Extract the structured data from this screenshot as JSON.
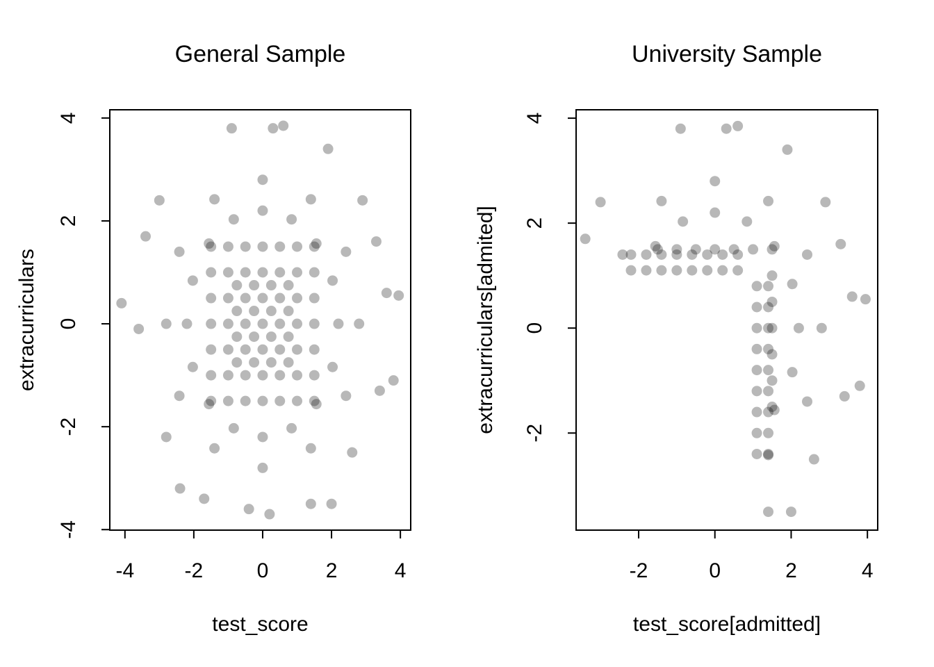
{
  "chart_data": [
    {
      "type": "scatter",
      "title": "General Sample",
      "xlabel": "test_score",
      "ylabel": "extracurriculars",
      "color": "rgba(0,0,0,0.28)",
      "xlim": [
        -4.44,
        4.3
      ],
      "ylim": [
        -4.01,
        4.16
      ],
      "xticks": [
        -4,
        -2,
        0,
        2,
        4
      ],
      "yticks": [
        -4,
        -2,
        0,
        2,
        4
      ],
      "x": [
        -1.5,
        -1.5,
        -1.5,
        -1.5,
        -1.5,
        -1.5,
        -1.5,
        -1,
        -1,
        -1,
        -1,
        -1,
        -1,
        -1,
        -0.5,
        -0.5,
        -0.5,
        -0.5,
        -0.5,
        -0.5,
        -0.5,
        0,
        0,
        0,
        0,
        0,
        0,
        0,
        0.5,
        0.5,
        0.5,
        0.5,
        0.5,
        0.5,
        0.5,
        1,
        1,
        1,
        1,
        1,
        1,
        1,
        1.5,
        1.5,
        1.5,
        1.5,
        1.5,
        1.5,
        1.5,
        -0.75,
        -0.75,
        -0.75,
        -0.75,
        -0.25,
        -0.25,
        -0.25,
        -0.25,
        0.25,
        0.25,
        0.25,
        0.25,
        0.75,
        0.75,
        0.75,
        0.75,
        2.2,
        2.03,
        1.56,
        0.84,
        0,
        -0.84,
        -1.56,
        -2.03,
        -2.2,
        -2.03,
        -1.56,
        -0.84,
        0,
        0.84,
        1.56,
        2.03,
        2.8,
        2.42,
        1.4,
        0,
        -1.4,
        -2.42,
        -2.8,
        -2.42,
        -1.4,
        0,
        1.4,
        2.42,
        -4.1,
        3.95,
        3.8,
        -3.4,
        3.3,
        0.3,
        -0.9,
        0.6,
        -0.4,
        0.2,
        1.9,
        -2.4,
        2.0,
        1.4,
        -1.7,
        -3.6,
        3.6,
        3.4,
        -3.0,
        2.9,
        -2.8,
        2.6
      ],
      "values": [
        -1.5,
        -1,
        -0.5,
        0,
        0.5,
        1,
        1.5,
        -1.5,
        -1,
        -0.5,
        0,
        0.5,
        1,
        1.5,
        -1.5,
        -1,
        -0.5,
        0,
        0.5,
        1,
        1.5,
        -1.5,
        -1,
        -0.5,
        0,
        0.5,
        1,
        1.5,
        -1.5,
        -1,
        -0.5,
        0,
        0.5,
        1,
        1.5,
        -1.5,
        -1,
        -0.5,
        0,
        0.5,
        1,
        1.5,
        -1.5,
        -1,
        -0.5,
        0,
        0.5,
        1,
        1.5,
        -0.75,
        -0.25,
        0.25,
        0.75,
        -0.75,
        -0.25,
        0.25,
        0.75,
        -0.75,
        -0.25,
        0.25,
        0.75,
        -0.75,
        -0.25,
        0.25,
        0.75,
        0,
        0.84,
        1.56,
        2.03,
        2.2,
        2.03,
        1.56,
        0.84,
        0,
        -0.84,
        -1.56,
        -2.03,
        -2.2,
        -2.03,
        -1.56,
        -0.84,
        0,
        1.4,
        2.42,
        2.8,
        2.42,
        1.4,
        0,
        -1.4,
        -2.42,
        -2.8,
        -2.42,
        -1.4,
        0.4,
        0.55,
        -1.1,
        1.7,
        1.6,
        3.8,
        3.8,
        3.85,
        -3.6,
        -3.7,
        3.4,
        -3.2,
        -3.5,
        -3.5,
        -3.4,
        -0.1,
        0.6,
        -1.3,
        2.4,
        2.4,
        -2.2,
        -2.5
      ]
    },
    {
      "type": "scatter",
      "title": "University Sample",
      "xlabel": "test_score[admitted]",
      "ylabel": "extracurriculars[admited]",
      "color": "rgba(0,0,0,0.28)",
      "xlim": [
        -3.64,
        4.27
      ],
      "ylim": [
        -3.85,
        4.16
      ],
      "xticks": [
        -2,
        0,
        2,
        4
      ],
      "yticks": [
        -2,
        0,
        2,
        4
      ],
      "x": [
        1.5,
        1.5,
        1.5,
        1.5,
        1.5,
        1.5,
        1.5,
        -1.5,
        -1,
        -0.5,
        0,
        0.5,
        1,
        2.2,
        2.03,
        1.56,
        0.84,
        0,
        -0.84,
        -1.56,
        1.56,
        2.03,
        2.8,
        2.42,
        1.4,
        0,
        -1.4,
        -2.42,
        1.4,
        2.42,
        3.95,
        3.8,
        -3.4,
        3.3,
        0.3,
        -0.9,
        0.6,
        1.9,
        2.0,
        1.4,
        3.6,
        3.4,
        -3.0,
        2.9,
        2.6,
        1.1,
        1.1,
        1.1,
        1.1,
        1.1,
        1.1,
        1.1,
        1.1,
        1.1,
        1.4,
        1.4,
        1.4,
        1.4,
        1.4,
        1.4,
        1.4,
        1.4,
        1.4,
        -2.2,
        -1.8,
        -1.4,
        -1,
        -0.6,
        -0.2,
        0.2,
        0.6,
        -2.2,
        -1.8,
        -1.4,
        -1,
        -0.6,
        -0.2,
        0.2,
        0.6
      ],
      "values": [
        -1.5,
        -1,
        -0.5,
        0,
        0.5,
        1,
        1.5,
        1.5,
        1.5,
        1.5,
        1.5,
        1.5,
        1.5,
        0,
        0.84,
        1.56,
        2.03,
        2.2,
        2.03,
        1.56,
        -1.56,
        -0.84,
        0,
        1.4,
        2.42,
        2.8,
        2.42,
        1.4,
        -2.42,
        -1.4,
        0.55,
        -1.1,
        1.7,
        1.6,
        3.8,
        3.8,
        3.85,
        3.4,
        -3.5,
        -3.5,
        0.6,
        -1.3,
        2.4,
        2.4,
        -2.5,
        -2.4,
        -2,
        -1.6,
        -1.2,
        -0.8,
        -0.4,
        0,
        0.4,
        0.8,
        -2.4,
        -2,
        -1.6,
        -1.2,
        -0.8,
        -0.4,
        0,
        0.4,
        0.8,
        1.1,
        1.1,
        1.1,
        1.1,
        1.1,
        1.1,
        1.1,
        1.1,
        1.4,
        1.4,
        1.4,
        1.4,
        1.4,
        1.4,
        1.4,
        1.4
      ]
    }
  ]
}
